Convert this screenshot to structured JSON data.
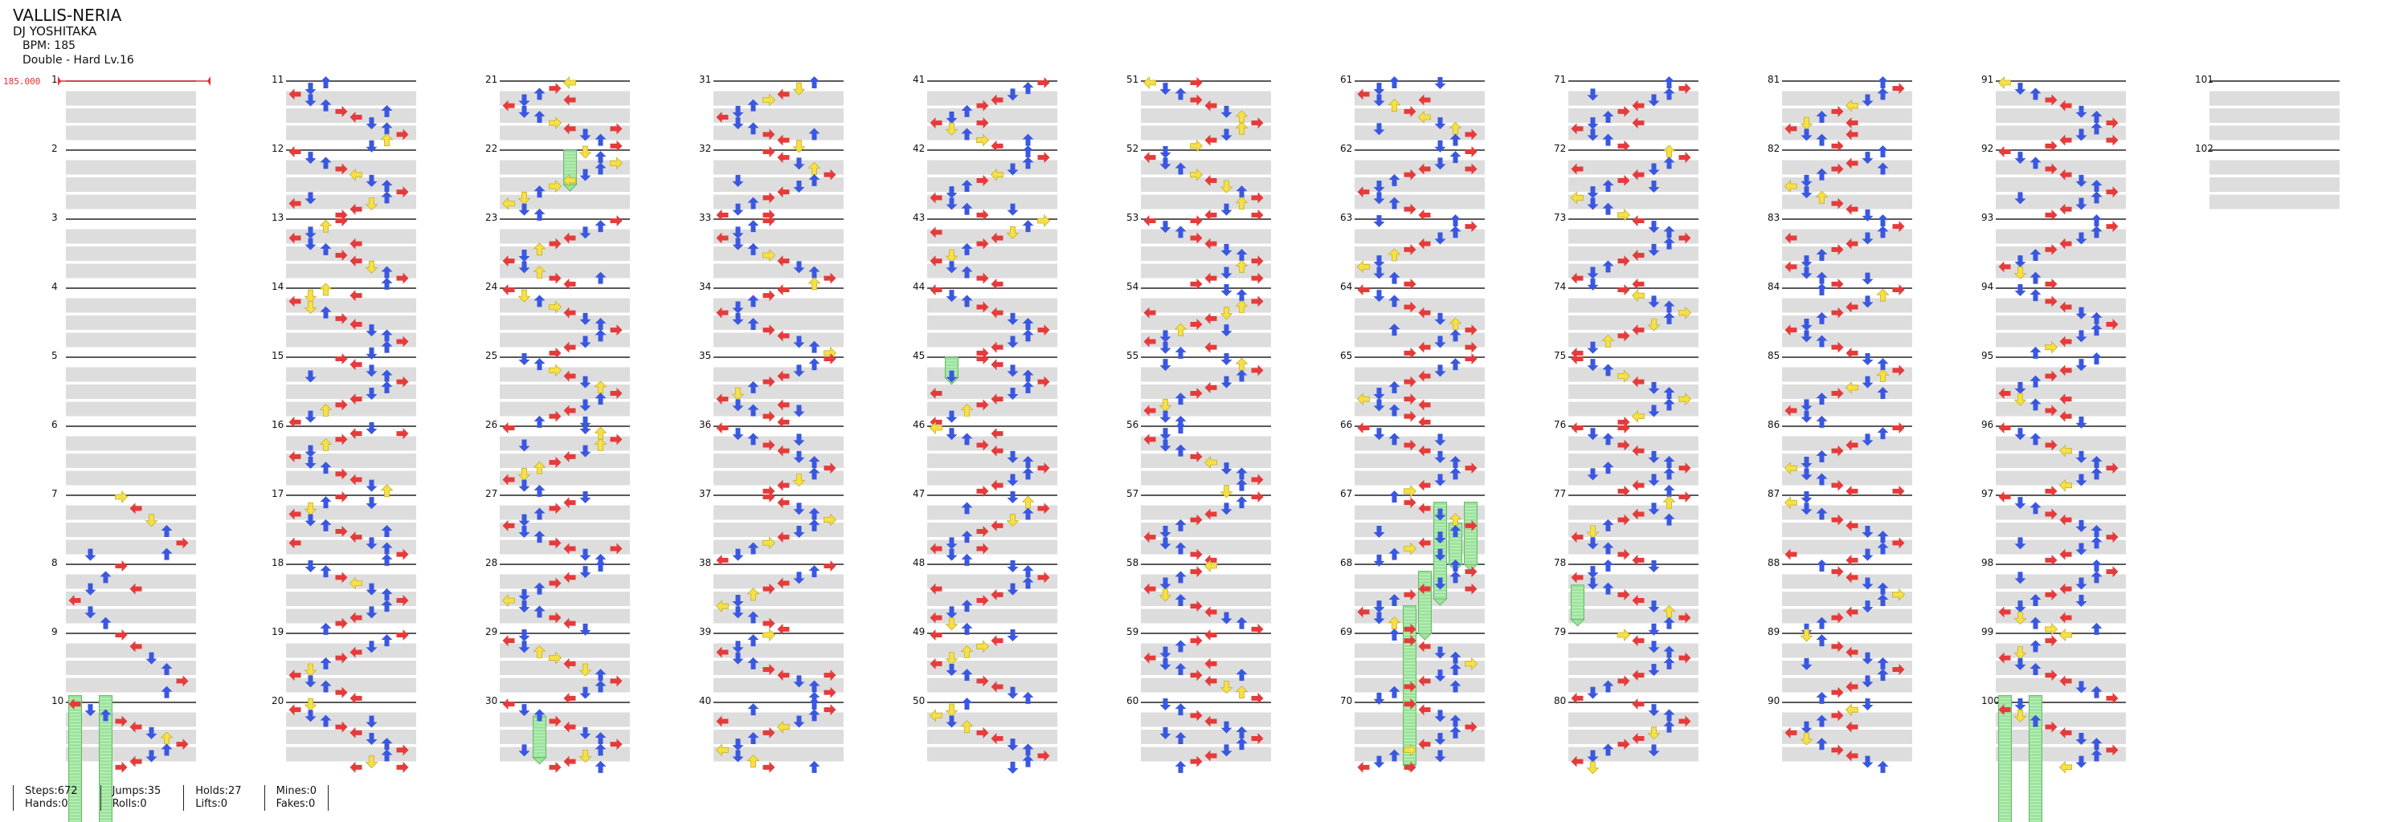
{
  "song": {
    "title": "VALLIS-NERIA",
    "artist": "DJ YOSHITAKA",
    "bpm_line": "BPM: 185",
    "difficulty_line": "Double - Hard Lv.16"
  },
  "bpm_marker": {
    "label": "185.000",
    "color": "#e03030"
  },
  "measures_shown": 102,
  "colors": {
    "left_right": "#e53b3b",
    "up_down": "#3a57e0",
    "center": "#f5e04a",
    "hold": "#9be39b",
    "shade_row": "#dddddd",
    "rule": "#222222"
  },
  "stats": [
    {
      "a": "Steps:672",
      "b": "Hands:0"
    },
    {
      "a": "Jumps:35",
      "b": "Rolls:0"
    },
    {
      "a": "Holds:27",
      "b": "Lifts:0"
    },
    {
      "a": "Mines:0",
      "b": "Fakes:0"
    }
  ]
}
